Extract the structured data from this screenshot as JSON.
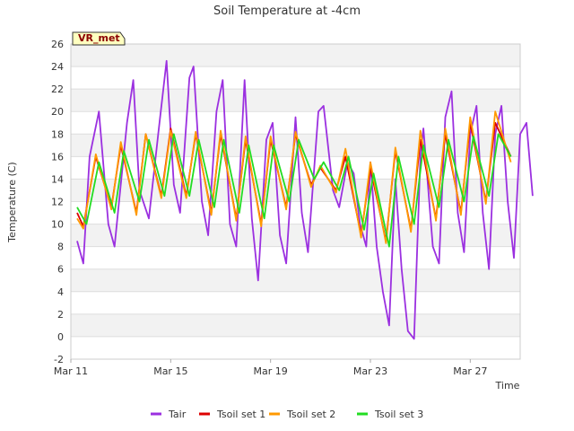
{
  "chart_data": {
    "type": "line",
    "title": "Soil Temperature at -4cm",
    "xlabel": "Time",
    "ylabel": "Temperature (C)",
    "badge": "VR_met",
    "ylim": [
      -2,
      26
    ],
    "xlim": [
      "2024-03-11",
      "2024-03-29"
    ],
    "y_ticks": [
      -2,
      0,
      2,
      4,
      6,
      8,
      10,
      12,
      14,
      16,
      18,
      20,
      22,
      24,
      26
    ],
    "x_ticks": [
      {
        "date": "2024-03-11",
        "label": "Mar 11"
      },
      {
        "date": "2024-03-15",
        "label": "Mar 15"
      },
      {
        "date": "2024-03-19",
        "label": "Mar 19"
      },
      {
        "date": "2024-03-23",
        "label": "Mar 23"
      },
      {
        "date": "2024-03-27",
        "label": "Mar 27"
      }
    ],
    "grid": true,
    "legend_position": "bottom",
    "series": [
      {
        "name": "Tair",
        "color": "#9b30e0",
        "points": [
          [
            "2024-03-11 06:00",
            8.5
          ],
          [
            "2024-03-11 12:00",
            6.5
          ],
          [
            "2024-03-11 18:00",
            16.0
          ],
          [
            "2024-03-12 03:00",
            20.0
          ],
          [
            "2024-03-12 12:00",
            10.0
          ],
          [
            "2024-03-12 18:00",
            8.0
          ],
          [
            "2024-03-13 06:00",
            19.0
          ],
          [
            "2024-03-13 12:00",
            22.8
          ],
          [
            "2024-03-13 18:00",
            13.0
          ],
          [
            "2024-03-14 03:00",
            10.5
          ],
          [
            "2024-03-14 12:00",
            18.0
          ],
          [
            "2024-03-14 20:00",
            24.5
          ],
          [
            "2024-03-15 03:00",
            13.5
          ],
          [
            "2024-03-15 09:00",
            11.0
          ],
          [
            "2024-03-15 18:00",
            23.0
          ],
          [
            "2024-03-15 22:00",
            24.0
          ],
          [
            "2024-03-16 06:00",
            12.0
          ],
          [
            "2024-03-16 12:00",
            9.0
          ],
          [
            "2024-03-16 20:00",
            20.0
          ],
          [
            "2024-03-17 02:00",
            22.8
          ],
          [
            "2024-03-17 09:00",
            10.0
          ],
          [
            "2024-03-17 15:00",
            8.0
          ],
          [
            "2024-03-17 23:00",
            22.8
          ],
          [
            "2024-03-18 06:00",
            10.5
          ],
          [
            "2024-03-18 12:00",
            5.0
          ],
          [
            "2024-03-18 20:00",
            17.5
          ],
          [
            "2024-03-19 02:00",
            19.0
          ],
          [
            "2024-03-19 09:00",
            9.0
          ],
          [
            "2024-03-19 15:00",
            6.5
          ],
          [
            "2024-03-20 00:00",
            19.5
          ],
          [
            "2024-03-20 06:00",
            11.0
          ],
          [
            "2024-03-20 12:00",
            7.5
          ],
          [
            "2024-03-20 22:00",
            20.0
          ],
          [
            "2024-03-21 03:00",
            20.5
          ],
          [
            "2024-03-21 12:00",
            13.0
          ],
          [
            "2024-03-21 18:00",
            11.5
          ],
          [
            "2024-03-22 02:00",
            15.5
          ],
          [
            "2024-03-22 08:00",
            14.5
          ],
          [
            "2024-03-22 14:00",
            10.0
          ],
          [
            "2024-03-22 20:00",
            8.0
          ],
          [
            "2024-03-23 00:00",
            15.5
          ],
          [
            "2024-03-23 06:00",
            8.0
          ],
          [
            "2024-03-23 12:00",
            4.0
          ],
          [
            "2024-03-23 18:00",
            1.0
          ],
          [
            "2024-03-24 00:00",
            14.0
          ],
          [
            "2024-03-24 06:00",
            6.0
          ],
          [
            "2024-03-24 12:00",
            0.5
          ],
          [
            "2024-03-24 18:00",
            -0.2
          ],
          [
            "2024-03-25 00:00",
            16.0
          ],
          [
            "2024-03-25 03:00",
            18.5
          ],
          [
            "2024-03-25 12:00",
            8.0
          ],
          [
            "2024-03-25 18:00",
            6.5
          ],
          [
            "2024-03-26 00:00",
            19.5
          ],
          [
            "2024-03-26 06:00",
            21.8
          ],
          [
            "2024-03-26 12:00",
            11.0
          ],
          [
            "2024-03-26 18:00",
            7.5
          ],
          [
            "2024-03-27 00:00",
            18.0
          ],
          [
            "2024-03-27 06:00",
            20.5
          ],
          [
            "2024-03-27 12:00",
            11.0
          ],
          [
            "2024-03-27 18:00",
            6.0
          ],
          [
            "2024-03-28 00:00",
            18.0
          ],
          [
            "2024-03-28 06:00",
            20.5
          ],
          [
            "2024-03-28 12:00",
            12.0
          ],
          [
            "2024-03-28 18:00",
            7.0
          ],
          [
            "2024-03-29 00:00",
            18.0
          ],
          [
            "2024-03-29 06:00",
            19.0
          ],
          [
            "2024-03-29 12:00",
            12.5
          ]
        ]
      },
      {
        "name": "Tsoil set 1",
        "color": "#dd0000",
        "points": [
          [
            "2024-03-11 06:00",
            11.0
          ],
          [
            "2024-03-11 12:00",
            9.8
          ],
          [
            "2024-03-12 00:00",
            16.0
          ],
          [
            "2024-03-12 15:00",
            11.5
          ],
          [
            "2024-03-13 00:00",
            17.0
          ],
          [
            "2024-03-13 15:00",
            11.0
          ],
          [
            "2024-03-14 00:00",
            18.0
          ],
          [
            "2024-03-14 15:00",
            12.5
          ],
          [
            "2024-03-15 00:00",
            18.5
          ],
          [
            "2024-03-15 15:00",
            12.5
          ],
          [
            "2024-03-16 00:00",
            18.0
          ],
          [
            "2024-03-16 15:00",
            11.0
          ],
          [
            "2024-03-17 00:00",
            18.0
          ],
          [
            "2024-03-17 15:00",
            10.5
          ],
          [
            "2024-03-18 00:00",
            17.5
          ],
          [
            "2024-03-18 15:00",
            10.0
          ],
          [
            "2024-03-19 00:00",
            17.5
          ],
          [
            "2024-03-19 15:00",
            11.5
          ],
          [
            "2024-03-20 00:00",
            18.0
          ],
          [
            "2024-03-20 15:00",
            13.5
          ],
          [
            "2024-03-21 00:00",
            15.0
          ],
          [
            "2024-03-21 15:00",
            13.0
          ],
          [
            "2024-03-22 00:00",
            16.0
          ],
          [
            "2024-03-22 15:00",
            9.0
          ],
          [
            "2024-03-23 00:00",
            15.0
          ],
          [
            "2024-03-23 15:00",
            8.5
          ],
          [
            "2024-03-24 00:00",
            16.5
          ],
          [
            "2024-03-24 15:00",
            9.5
          ],
          [
            "2024-03-25 00:00",
            17.5
          ],
          [
            "2024-03-25 15:00",
            10.5
          ],
          [
            "2024-03-26 00:00",
            18.0
          ],
          [
            "2024-03-26 15:00",
            11.0
          ],
          [
            "2024-03-27 00:00",
            19.0
          ],
          [
            "2024-03-27 15:00",
            12.0
          ],
          [
            "2024-03-28 00:00",
            19.0
          ],
          [
            "2024-03-28 15:00",
            16.0
          ]
        ]
      },
      {
        "name": "Tsoil set 2",
        "color": "#ff9900",
        "points": [
          [
            "2024-03-11 06:00",
            10.5
          ],
          [
            "2024-03-11 12:00",
            9.6
          ],
          [
            "2024-03-12 00:00",
            16.2
          ],
          [
            "2024-03-12 15:00",
            11.3
          ],
          [
            "2024-03-13 00:00",
            17.3
          ],
          [
            "2024-03-13 15:00",
            10.8
          ],
          [
            "2024-03-14 00:00",
            18.0
          ],
          [
            "2024-03-14 15:00",
            12.3
          ],
          [
            "2024-03-15 00:00",
            18.3
          ],
          [
            "2024-03-15 15:00",
            12.3
          ],
          [
            "2024-03-16 00:00",
            18.2
          ],
          [
            "2024-03-16 15:00",
            10.8
          ],
          [
            "2024-03-17 00:00",
            18.3
          ],
          [
            "2024-03-17 15:00",
            10.3
          ],
          [
            "2024-03-18 00:00",
            17.8
          ],
          [
            "2024-03-18 15:00",
            9.8
          ],
          [
            "2024-03-19 00:00",
            17.8
          ],
          [
            "2024-03-19 15:00",
            11.3
          ],
          [
            "2024-03-20 00:00",
            18.2
          ],
          [
            "2024-03-20 15:00",
            13.3
          ],
          [
            "2024-03-21 00:00",
            15.2
          ],
          [
            "2024-03-21 15:00",
            12.8
          ],
          [
            "2024-03-22 00:00",
            16.7
          ],
          [
            "2024-03-22 15:00",
            8.8
          ],
          [
            "2024-03-23 00:00",
            15.5
          ],
          [
            "2024-03-23 15:00",
            8.3
          ],
          [
            "2024-03-24 00:00",
            16.8
          ],
          [
            "2024-03-24 15:00",
            9.3
          ],
          [
            "2024-03-25 00:00",
            18.3
          ],
          [
            "2024-03-25 15:00",
            10.3
          ],
          [
            "2024-03-26 00:00",
            18.5
          ],
          [
            "2024-03-26 15:00",
            10.8
          ],
          [
            "2024-03-27 00:00",
            19.5
          ],
          [
            "2024-03-27 15:00",
            11.8
          ],
          [
            "2024-03-28 00:00",
            20.0
          ],
          [
            "2024-03-28 15:00",
            15.5
          ]
        ]
      },
      {
        "name": "Tsoil set 3",
        "color": "#22dd22",
        "points": [
          [
            "2024-03-11 06:00",
            11.5
          ],
          [
            "2024-03-11 15:00",
            10.0
          ],
          [
            "2024-03-12 03:00",
            15.5
          ],
          [
            "2024-03-12 18:00",
            11.0
          ],
          [
            "2024-03-13 03:00",
            16.5
          ],
          [
            "2024-03-13 18:00",
            12.0
          ],
          [
            "2024-03-14 03:00",
            17.5
          ],
          [
            "2024-03-14 18:00",
            12.5
          ],
          [
            "2024-03-15 03:00",
            18.0
          ],
          [
            "2024-03-15 18:00",
            12.5
          ],
          [
            "2024-03-16 03:00",
            17.5
          ],
          [
            "2024-03-16 18:00",
            11.5
          ],
          [
            "2024-03-17 03:00",
            17.5
          ],
          [
            "2024-03-17 18:00",
            11.0
          ],
          [
            "2024-03-18 03:00",
            17.0
          ],
          [
            "2024-03-18 18:00",
            10.5
          ],
          [
            "2024-03-19 03:00",
            17.0
          ],
          [
            "2024-03-19 18:00",
            12.0
          ],
          [
            "2024-03-20 03:00",
            17.5
          ],
          [
            "2024-03-20 18:00",
            14.0
          ],
          [
            "2024-03-21 03:00",
            15.5
          ],
          [
            "2024-03-21 18:00",
            13.0
          ],
          [
            "2024-03-22 03:00",
            16.0
          ],
          [
            "2024-03-22 18:00",
            9.5
          ],
          [
            "2024-03-23 03:00",
            14.5
          ],
          [
            "2024-03-23 18:00",
            8.0
          ],
          [
            "2024-03-24 03:00",
            16.0
          ],
          [
            "2024-03-24 18:00",
            10.0
          ],
          [
            "2024-03-25 03:00",
            17.0
          ],
          [
            "2024-03-25 18:00",
            11.5
          ],
          [
            "2024-03-26 03:00",
            17.5
          ],
          [
            "2024-03-26 18:00",
            12.0
          ],
          [
            "2024-03-27 03:00",
            17.8
          ],
          [
            "2024-03-27 18:00",
            12.5
          ],
          [
            "2024-03-28 03:00",
            18.0
          ],
          [
            "2024-03-28 15:00",
            16.0
          ]
        ]
      }
    ]
  }
}
